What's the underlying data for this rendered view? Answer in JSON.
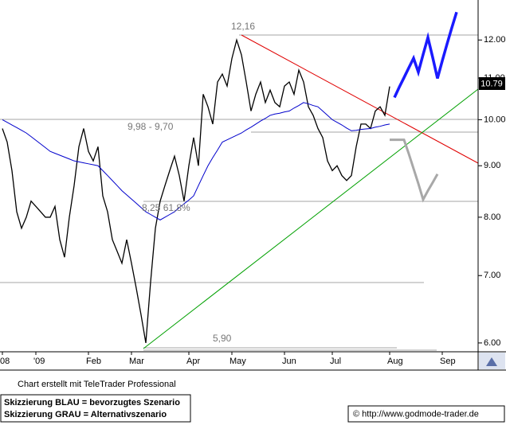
{
  "chart_data": {
    "type": "line",
    "categories": [
      "08",
      null,
      null,
      null,
      null,
      null,
      null,
      "'09",
      null,
      null,
      null,
      null,
      null,
      null,
      null,
      null,
      null,
      null,
      "Feb",
      null,
      null,
      null,
      null,
      null,
      null,
      null,
      null,
      "Mar",
      null,
      null,
      null,
      null,
      null,
      null,
      null,
      null,
      null,
      null,
      null,
      "Apr",
      null,
      null,
      null,
      null,
      null,
      null,
      null,
      null,
      "May",
      null,
      null,
      null,
      null,
      null,
      null,
      null,
      null,
      null,
      null,
      "Jun",
      null,
      null,
      null,
      null,
      null,
      null,
      null,
      null,
      null,
      "Jul",
      null,
      null,
      null,
      null,
      null,
      null,
      null,
      null,
      null,
      null,
      null,
      "Aug",
      null,
      null,
      null,
      null,
      null,
      null,
      null,
      null,
      null,
      null,
      "Sep",
      null,
      null,
      null,
      null,
      null,
      null,
      null
    ],
    "series": [
      {
        "color": "#000000",
        "width": 1.3,
        "values": [
          9.8,
          9.5,
          8.9,
          8.1,
          7.8,
          8.0,
          8.3,
          8.2,
          8.1,
          8.0,
          8.0,
          8.2,
          7.6,
          7.3,
          8.0,
          8.6,
          9.4,
          9.8,
          9.3,
          9.1,
          9.4,
          8.4,
          8.1,
          7.6,
          7.4,
          7.2,
          7.6,
          7.2,
          6.8,
          6.4,
          6.0,
          6.9,
          7.8,
          8.3,
          8.6,
          8.9,
          9.2,
          8.8,
          8.3,
          9.0,
          9.6,
          9.0,
          10.6,
          10.3,
          9.9,
          10.9,
          11.1,
          10.8,
          11.5,
          12.0,
          11.6,
          10.9,
          10.2,
          10.6,
          10.9,
          10.4,
          10.7,
          10.4,
          10.3,
          10.8,
          10.9,
          10.6,
          11.2,
          10.9,
          10.3,
          10.1,
          9.8,
          9.6,
          9.1,
          8.9,
          9.0,
          8.8,
          8.7,
          8.8,
          9.4,
          9.9,
          9.9,
          9.8,
          10.2,
          10.3,
          10.1,
          10.79,
          null,
          null,
          null,
          null,
          null,
          null,
          null,
          null,
          null,
          null,
          null,
          null,
          null,
          null,
          null,
          null,
          null,
          null
        ]
      },
      {
        "color": "#0000cc",
        "width": 1,
        "values": [
          10.0,
          9.94,
          9.88,
          9.82,
          9.76,
          9.7,
          9.62,
          9.54,
          9.46,
          9.38,
          9.3,
          9.26,
          9.22,
          9.18,
          9.14,
          9.1,
          9.08,
          9.06,
          9.04,
          9.02,
          9.0,
          8.9,
          8.8,
          8.7,
          8.6,
          8.5,
          8.42,
          8.34,
          8.26,
          8.18,
          8.1,
          8.05,
          8.0,
          7.95,
          8.0,
          8.05,
          8.1,
          8.18,
          8.25,
          8.32,
          8.4,
          8.6,
          8.8,
          9.0,
          9.17,
          9.33,
          9.5,
          9.55,
          9.6,
          9.65,
          9.7,
          9.77,
          9.83,
          9.9,
          9.97,
          10.03,
          10.1,
          10.13,
          10.15,
          10.18,
          10.2,
          10.27,
          10.33,
          10.4,
          10.37,
          10.33,
          10.3,
          10.2,
          10.1,
          10.0,
          9.94,
          9.88,
          9.81,
          9.75,
          9.76,
          9.78,
          9.79,
          9.8,
          9.83,
          9.85,
          9.88,
          9.9,
          null,
          null,
          null,
          null,
          null,
          null,
          null,
          null,
          null,
          null,
          null,
          null,
          null,
          null,
          null,
          null,
          null,
          null
        ]
      },
      {
        "color": "#1a1aff",
        "width": 3.5,
        "values": [
          null,
          null,
          null,
          null,
          null,
          null,
          null,
          null,
          null,
          null,
          null,
          null,
          null,
          null,
          null,
          null,
          null,
          null,
          null,
          null,
          null,
          null,
          null,
          null,
          null,
          null,
          null,
          null,
          null,
          null,
          null,
          null,
          null,
          null,
          null,
          null,
          null,
          null,
          null,
          null,
          null,
          null,
          null,
          null,
          null,
          null,
          null,
          null,
          null,
          null,
          null,
          null,
          null,
          null,
          null,
          null,
          null,
          null,
          null,
          null,
          null,
          null,
          null,
          null,
          null,
          null,
          null,
          null,
          null,
          null,
          null,
          null,
          null,
          null,
          null,
          null,
          null,
          null,
          null,
          null,
          null,
          null,
          10.52,
          10.77,
          11.01,
          11.26,
          11.51,
          11.15,
          11.61,
          12.07,
          11.53,
          10.99,
          11.44,
          11.89,
          12.34,
          12.79,
          null,
          null,
          null,
          null
        ]
      },
      {
        "color": "#a8a8a8",
        "width": 3,
        "values": [
          null,
          null,
          null,
          null,
          null,
          null,
          null,
          null,
          null,
          null,
          null,
          null,
          null,
          null,
          null,
          null,
          null,
          null,
          null,
          null,
          null,
          null,
          null,
          null,
          null,
          null,
          null,
          null,
          null,
          null,
          null,
          null,
          null,
          null,
          null,
          null,
          null,
          null,
          null,
          null,
          null,
          null,
          null,
          null,
          null,
          null,
          null,
          null,
          null,
          null,
          null,
          null,
          null,
          null,
          null,
          null,
          null,
          null,
          null,
          null,
          null,
          null,
          null,
          null,
          null,
          null,
          null,
          null,
          null,
          null,
          null,
          null,
          null,
          null,
          null,
          null,
          null,
          null,
          null,
          null,
          null,
          9.55,
          9.55,
          9.55,
          9.55,
          9.25,
          8.94,
          8.64,
          8.33,
          8.5,
          8.66,
          8.83,
          null,
          null,
          null,
          null,
          null,
          null,
          null,
          null
        ]
      }
    ],
    "ylim": [
      5.88,
      13.15
    ],
    "log_y": true,
    "yticks": [
      {
        "value": 6,
        "label": "6.00"
      },
      {
        "value": 7,
        "label": "7.00"
      },
      {
        "value": 8,
        "label": "8.00"
      },
      {
        "value": 9,
        "label": "9.00"
      },
      {
        "value": 10,
        "label": "10.00"
      },
      {
        "value": 11,
        "label": "11.00"
      },
      {
        "value": 12,
        "label": "12.00"
      }
    ],
    "annotations": [
      "12,16",
      "9,98 - 9,70",
      "8,25 61,8%",
      "5,90"
    ],
    "credit": "Chart erstellt mit TeleTrader Professional",
    "notes": [
      "Skizzierung BLAU = bevorzugtes Szenario",
      "Skizzierung GRAU = Alternativszenario"
    ],
    "source": "© http://www.godmode-trader.de"
  }
}
